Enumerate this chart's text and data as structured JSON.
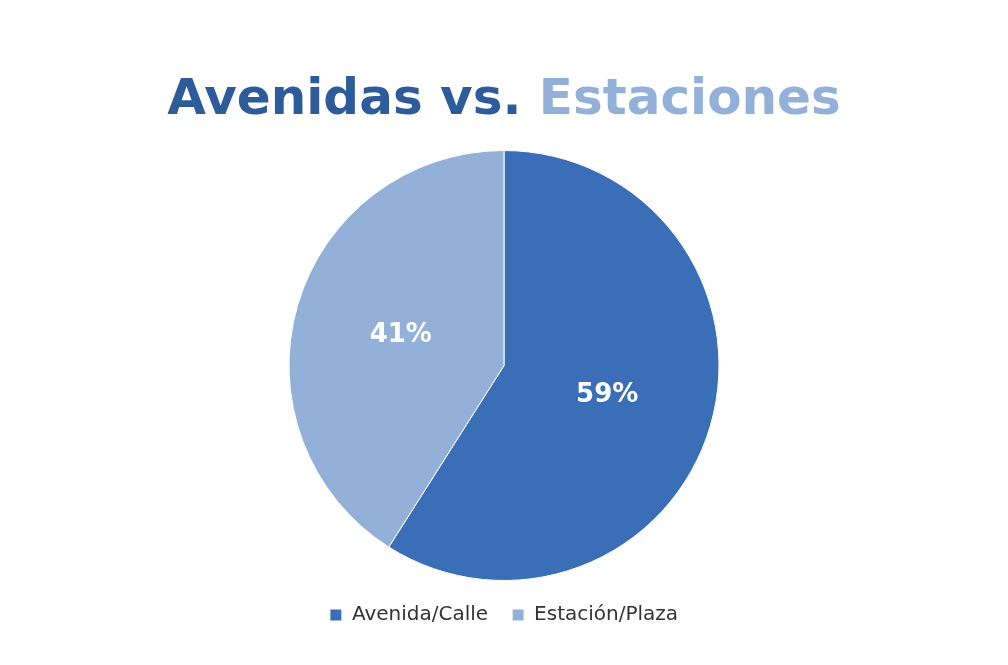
{
  "chart_data": {
    "type": "pie",
    "title": "Avenidas vs. Estaciones",
    "categories": [
      "Avenida/Calle",
      "Estación/Plaza"
    ],
    "values": [
      59,
      41
    ],
    "colors": [
      "#3a6fb8",
      "#93b1d8"
    ],
    "value_labels": [
      "59%",
      "41%"
    ],
    "legend": "bottom"
  }
}
